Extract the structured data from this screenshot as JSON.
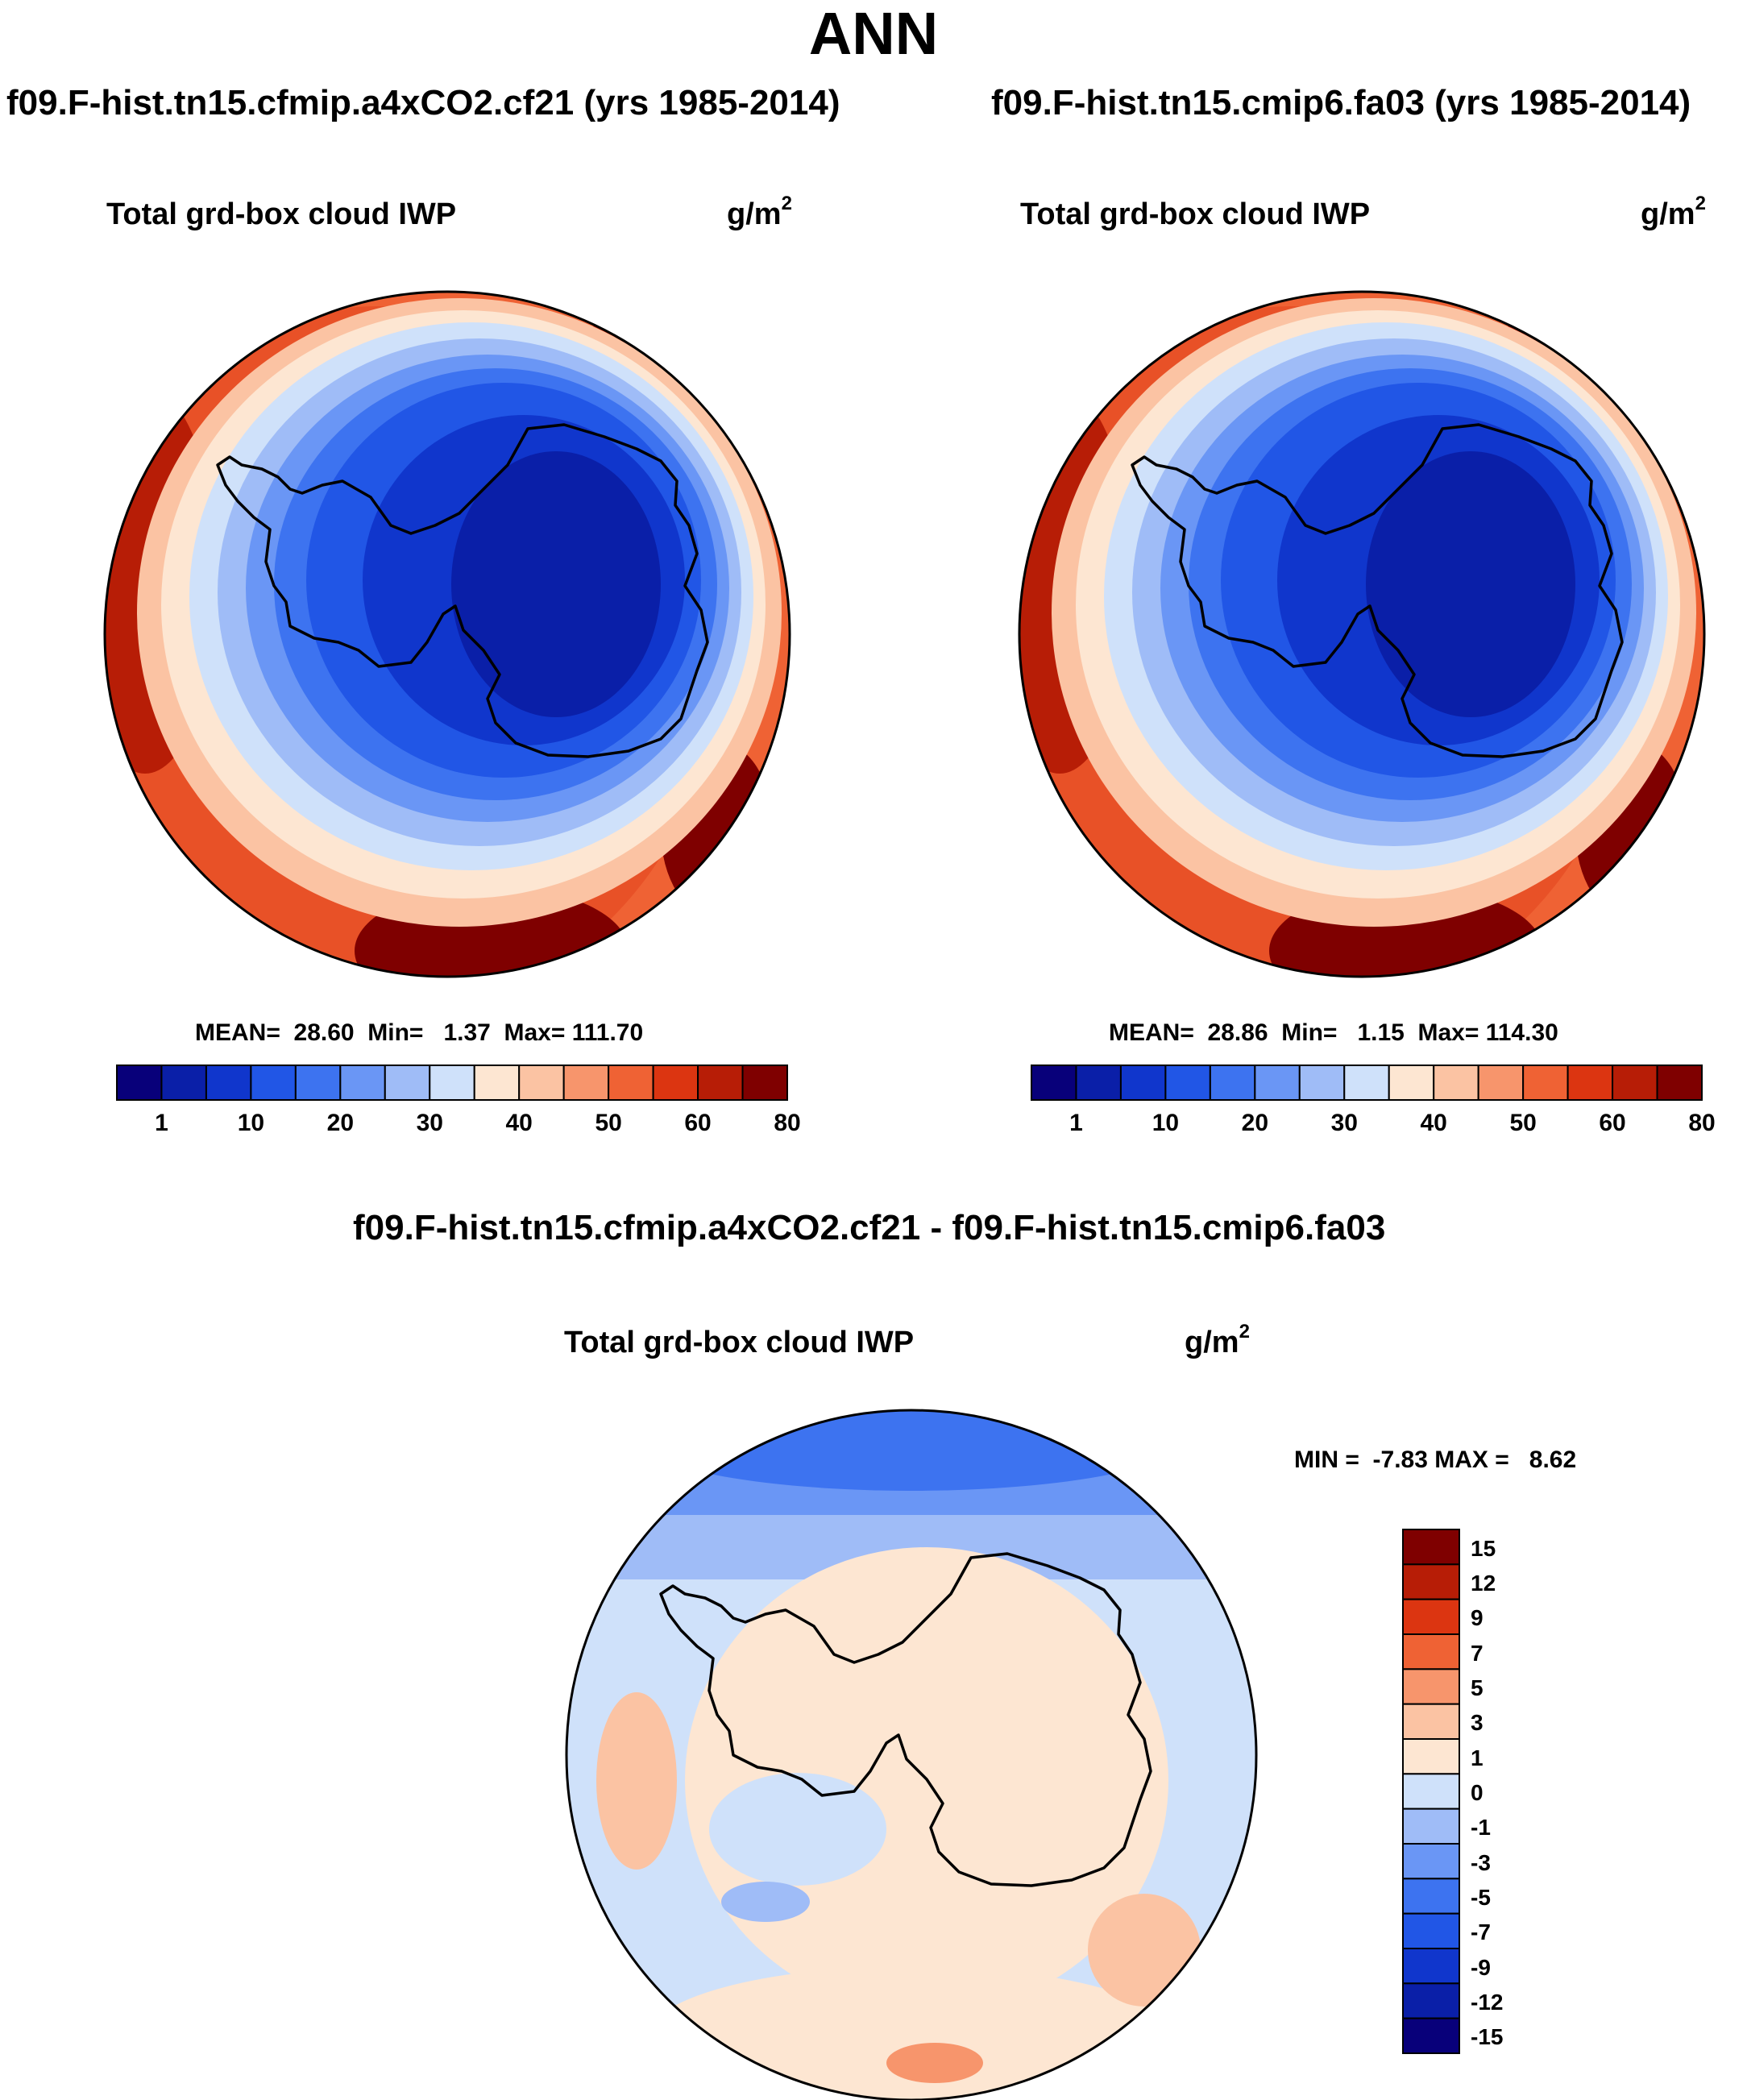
{
  "figure": {
    "title": "ANN",
    "panels": [
      {
        "case_title": "f09.F-hist.tn15.cfmip.a4xCO2.cf21 (yrs 1985-2014)",
        "variable": "Total grd-box cloud IWP",
        "units_base": "g/m",
        "units_exp": "2",
        "stats": "MEAN=  28.60  Min=   1.37  Max= 111.70"
      },
      {
        "case_title": "f09.F-hist.tn15.cmip6.fa03 (yrs 1985-2014)",
        "variable": "Total grd-box cloud IWP",
        "units_base": "g/m",
        "units_exp": "2",
        "stats": "MEAN=  28.86  Min=   1.15  Max= 114.30"
      },
      {
        "case_title": "f09.F-hist.tn15.cfmip.a4xCO2.cf21 - f09.F-hist.tn15.cmip6.fa03",
        "variable": "Total grd-box cloud IWP",
        "units_base": "g/m",
        "units_exp": "2",
        "stats": "MIN =  -7.83 MAX =   8.62"
      }
    ]
  },
  "chart_data": [
    {
      "type": "heatmap",
      "projection": "south-polar-stereographic",
      "title": "f09.F-hist.tn15.cfmip.a4xCO2.cf21 (yrs 1985-2014)",
      "variable": "Total grd-box cloud IWP",
      "units": "g/m^2",
      "mean": 28.6,
      "min": 1.37,
      "max": 111.7,
      "colorbar_orientation": "horizontal",
      "tick_labels": [
        "1",
        "10",
        "20",
        "30",
        "40",
        "50",
        "60",
        "80"
      ],
      "levels": [
        1,
        5,
        10,
        15,
        20,
        25,
        30,
        35,
        40,
        45,
        50,
        55,
        60,
        70,
        80
      ],
      "colors": [
        "#08007a",
        "#0a1fa8",
        "#1036cc",
        "#2156e6",
        "#3d73f0",
        "#6a96f5",
        "#9fbcf7",
        "#cfe1fa",
        "#fde6d2",
        "#fbc3a3",
        "#f7956c",
        "#ef6234",
        "#dc3511",
        "#b71d06",
        "#7f0000"
      ]
    },
    {
      "type": "heatmap",
      "projection": "south-polar-stereographic",
      "title": "f09.F-hist.tn15.cmip6.fa03 (yrs 1985-2014)",
      "variable": "Total grd-box cloud IWP",
      "units": "g/m^2",
      "mean": 28.86,
      "min": 1.15,
      "max": 114.3,
      "colorbar_orientation": "horizontal",
      "tick_labels": [
        "1",
        "10",
        "20",
        "30",
        "40",
        "50",
        "60",
        "80"
      ],
      "levels": [
        1,
        5,
        10,
        15,
        20,
        25,
        30,
        35,
        40,
        45,
        50,
        55,
        60,
        70,
        80
      ],
      "colors": [
        "#08007a",
        "#0a1fa8",
        "#1036cc",
        "#2156e6",
        "#3d73f0",
        "#6a96f5",
        "#9fbcf7",
        "#cfe1fa",
        "#fde6d2",
        "#fbc3a3",
        "#f7956c",
        "#ef6234",
        "#dc3511",
        "#b71d06",
        "#7f0000"
      ]
    },
    {
      "type": "heatmap",
      "projection": "south-polar-stereographic",
      "title": "f09.F-hist.tn15.cfmip.a4xCO2.cf21 - f09.F-hist.tn15.cmip6.fa03",
      "variable": "Total grd-box cloud IWP",
      "units": "g/m^2",
      "min": -7.83,
      "max": 8.62,
      "colorbar_orientation": "vertical",
      "tick_labels": [
        "15",
        "12",
        "9",
        "7",
        "5",
        "3",
        "1",
        "0",
        "-1",
        "-3",
        "-5",
        "-7",
        "-9",
        "-12",
        "-15"
      ],
      "colors_top_to_bottom": [
        "#7f0000",
        "#b71d06",
        "#dc3511",
        "#ef6234",
        "#f7956c",
        "#fbc3a3",
        "#fde6d2",
        "#cfe1fa",
        "#9fbcf7",
        "#6a96f5",
        "#3d73f0",
        "#2156e6",
        "#1036cc",
        "#0a1fa8",
        "#08007a"
      ]
    }
  ]
}
